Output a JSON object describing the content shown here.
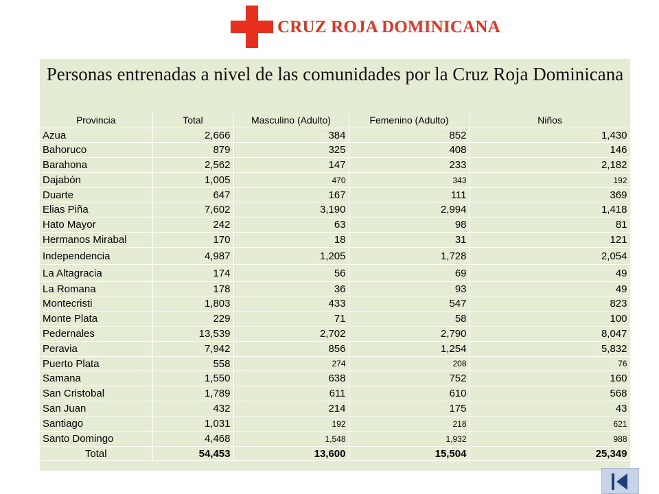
{
  "logo": {
    "text": "CRUZ ROJA DOMINICANA"
  },
  "title": "Personas entrenadas a nivel de las comunidades por la Cruz Roja Dominicana",
  "table": {
    "headers": [
      "Provincia",
      "Total",
      "Masculino (Adulto)",
      "Femenino (Adulto)",
      "Niños"
    ],
    "rows": [
      {
        "provincia": "Azua",
        "total": "2,666",
        "masculino": "384",
        "femenino": "852",
        "ninos": "1,430",
        "small": false,
        "flush": false
      },
      {
        "provincia": "Bahoruco",
        "total": "879",
        "masculino": "325",
        "femenino": "408",
        "ninos": "146",
        "small": false,
        "flush": false
      },
      {
        "provincia": "Barahona",
        "total": "2,562",
        "masculino": "147",
        "femenino": "233",
        "ninos": "2,182",
        "small": false,
        "flush": false
      },
      {
        "provincia": "Dajabón",
        "total": "1,005",
        "masculino": "470",
        "femenino": "343",
        "ninos": "192",
        "small": true,
        "flush": false
      },
      {
        "provincia": "Duarte",
        "total": "647",
        "masculino": "167",
        "femenino": "111",
        "ninos": "369",
        "small": false,
        "flush": false
      },
      {
        "provincia": "Elias Piña",
        "total": "7,602",
        "masculino": "3,190",
        "femenino": "2,994",
        "ninos": "1,418",
        "small": false,
        "flush": false
      },
      {
        "provincia": "Hato Mayor",
        "total": "242",
        "masculino": "63",
        "femenino": "98",
        "ninos": "81",
        "small": false,
        "flush": true
      },
      {
        "provincia": "Hermanos Mirabal",
        "total": "170",
        "masculino": "18",
        "femenino": "31",
        "ninos": "121",
        "small": false,
        "flush": true
      },
      {
        "provincia": "Independencia",
        "total": "4,987",
        "masculino": "1,205",
        "femenino": "1,728",
        "ninos": "2,054",
        "small": false,
        "flush": false
      },
      {
        "provincia": "La Altagracia",
        "total": "174",
        "masculino": "56",
        "femenino": "69",
        "ninos": "49",
        "small": false,
        "flush": true
      },
      {
        "provincia": "La Romana",
        "total": "178",
        "masculino": "36",
        "femenino": "93",
        "ninos": "49",
        "small": false,
        "flush": false
      },
      {
        "provincia": "Montecristi",
        "total": "1,803",
        "masculino": "433",
        "femenino": "547",
        "ninos": "823",
        "small": false,
        "flush": false
      },
      {
        "provincia": "Monte Plata",
        "total": "229",
        "masculino": "71",
        "femenino": "58",
        "ninos": "100",
        "small": false,
        "flush": false
      },
      {
        "provincia": "Pedernales",
        "total": "13,539",
        "masculino": "2,702",
        "femenino": "2,790",
        "ninos": "8,047",
        "small": false,
        "flush": false
      },
      {
        "provincia": "Peravia",
        "total": "7,942",
        "masculino": "856",
        "femenino": "1,254",
        "ninos": "5,832",
        "small": false,
        "flush": false
      },
      {
        "provincia": "Puerto Plata",
        "total": "558",
        "masculino": "274",
        "femenino": "208",
        "ninos": "76",
        "small": true,
        "flush": false
      },
      {
        "provincia": "Samana",
        "total": "1,550",
        "masculino": "638",
        "femenino": "752",
        "ninos": "160",
        "small": false,
        "flush": false
      },
      {
        "provincia": "San Cristobal",
        "total": "1,789",
        "masculino": "611",
        "femenino": "610",
        "ninos": "568",
        "small": false,
        "flush": true
      },
      {
        "provincia": "San Juan",
        "total": "432",
        "masculino": "214",
        "femenino": "175",
        "ninos": "43",
        "small": false,
        "flush": false
      },
      {
        "provincia": "Santiago",
        "total": "1,031",
        "masculino": "192",
        "femenino": "218",
        "ninos": "621",
        "small": true,
        "flush": false
      },
      {
        "provincia": "Santo Domingo",
        "total": "4,468",
        "masculino": "1,548",
        "femenino": "1,932",
        "ninos": "988",
        "small": true,
        "flush": false
      }
    ],
    "total_row": {
      "label": "Total",
      "total": "54,453",
      "masculino": "13,600",
      "femenino": "15,504",
      "ninos": "25,349"
    }
  },
  "colors": {
    "brand_red": "#e8301e",
    "panel": "#e4edd4",
    "nav_button": "#c7d3e6",
    "nav_icon": "#1d3f7a"
  },
  "nav": {
    "icon": "last-slide-icon"
  }
}
